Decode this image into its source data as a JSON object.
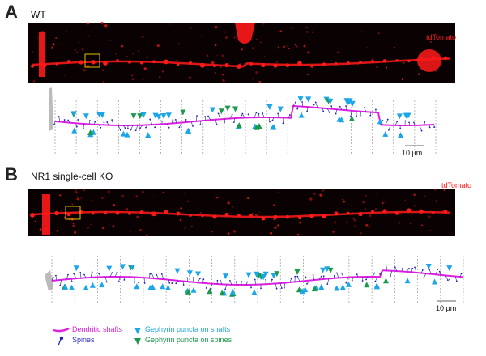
{
  "panels": [
    {
      "letter": "A",
      "condition": "WT",
      "channel": "tdTomato",
      "scale_bar": "10 µm"
    },
    {
      "letter": "B",
      "condition": "NR1 single-cell KO",
      "channel": "tdTomato",
      "scale_bar": "10 µm"
    }
  ],
  "legend": {
    "shafts": "Dendritic shafts",
    "spines": "Spines",
    "gephyrin_shafts": "Gephyrin puncta on shafts",
    "gephyrin_spines": "Gephyrin puncta on spines"
  },
  "colors": {
    "shaft": "#e020e0",
    "spine": "#2020c0",
    "gephyrin_shafts": "#1aa6e8",
    "gephyrin_spines": "#1a9a4a",
    "tdtomato": "#ff1a1a"
  }
}
